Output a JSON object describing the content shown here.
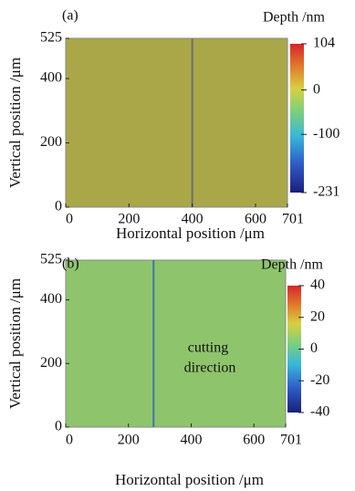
{
  "chart_data": [
    {
      "type": "heatmap",
      "panel_label": "(a)",
      "xlabel": "Horizontal position /μm",
      "ylabel": "Vertical position /μm",
      "xlim": [
        0,
        701
      ],
      "xticks": [
        0,
        200,
        400,
        600,
        701
      ],
      "ylim": [
        0,
        525
      ],
      "yticks": [
        0,
        200,
        400,
        525
      ],
      "color": "#a9a748",
      "marker_x": 400,
      "marker_color": "#6f6f70",
      "colorbar": {
        "title": "Depth /nm",
        "lim": [
          -231,
          104
        ],
        "ticks": [
          -231,
          -100,
          0,
          104
        ]
      }
    },
    {
      "type": "heatmap",
      "panel_label": "(b)",
      "xlabel": "Horizontal position /μm",
      "ylabel": "Vertical position /μm",
      "xlim": [
        0,
        701
      ],
      "xticks": [
        0,
        200,
        400,
        600,
        701
      ],
      "ylim": [
        0,
        525
      ],
      "yticks": [
        0,
        200,
        400,
        525
      ],
      "color": "#8ec56c",
      "marker_x": 280,
      "marker_color": "#3a78b0",
      "annotation": [
        "cutting",
        "direction"
      ],
      "colorbar": {
        "title": "Depth /nm",
        "lim": [
          -40,
          40
        ],
        "ticks": [
          -40,
          -20,
          0,
          20,
          40
        ]
      }
    }
  ]
}
